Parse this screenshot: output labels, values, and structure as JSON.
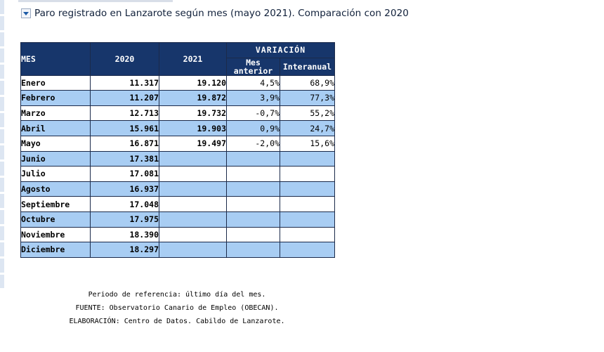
{
  "heading": {
    "title": "Paro registrado en Lanzarote según mes (mayo 2021). Comparación con 2020",
    "toggle_icon": "collapse-arrow-icon"
  },
  "table": {
    "headers": {
      "mes": "MES",
      "y2020": "2020",
      "y2021": "2021",
      "variacion": "VARIACIÓN",
      "mes_anterior_line1": "Mes",
      "mes_anterior_line2": "anterior",
      "interanual": "Interanual"
    },
    "rows": [
      {
        "mes": "Enero",
        "y2020": "11.317",
        "y2021": "19.120",
        "mes_anterior": "4,5%",
        "interanual": "68,9%"
      },
      {
        "mes": "Febrero",
        "y2020": "11.207",
        "y2021": "19.872",
        "mes_anterior": "3,9%",
        "interanual": "77,3%"
      },
      {
        "mes": "Marzo",
        "y2020": "12.713",
        "y2021": "19.732",
        "mes_anterior": "-0,7%",
        "interanual": "55,2%"
      },
      {
        "mes": "Abril",
        "y2020": "15.961",
        "y2021": "19.903",
        "mes_anterior": "0,9%",
        "interanual": "24,7%"
      },
      {
        "mes": "Mayo",
        "y2020": "16.871",
        "y2021": "19.497",
        "mes_anterior": "-2,0%",
        "interanual": "15,6%"
      },
      {
        "mes": "Junio",
        "y2020": "17.381",
        "y2021": "",
        "mes_anterior": "",
        "interanual": ""
      },
      {
        "mes": "Julio",
        "y2020": "17.081",
        "y2021": "",
        "mes_anterior": "",
        "interanual": ""
      },
      {
        "mes": "Agosto",
        "y2020": "16.937",
        "y2021": "",
        "mes_anterior": "",
        "interanual": ""
      },
      {
        "mes": "Septiembre",
        "y2020": "17.048",
        "y2021": "",
        "mes_anterior": "",
        "interanual": ""
      },
      {
        "mes": "Octubre",
        "y2020": "17.975",
        "y2021": "",
        "mes_anterior": "",
        "interanual": ""
      },
      {
        "mes": "Noviembre",
        "y2020": "18.390",
        "y2021": "",
        "mes_anterior": "",
        "interanual": ""
      },
      {
        "mes": "Diciembre",
        "y2020": "18.297",
        "y2021": "",
        "mes_anterior": "",
        "interanual": ""
      }
    ]
  },
  "footer": {
    "periodo": "Periodo de referencia: último día del mes.",
    "fuente": "FUENTE: Observatorio Canario de Empleo (OBECAN).",
    "elaboracion": "ELABORACIÓN: Centro de Datos. Cabildo de Lanzarote."
  },
  "colors": {
    "header_bg": "#17366b",
    "row_blue": "#a8cdf3",
    "row_white": "#ffffff"
  }
}
